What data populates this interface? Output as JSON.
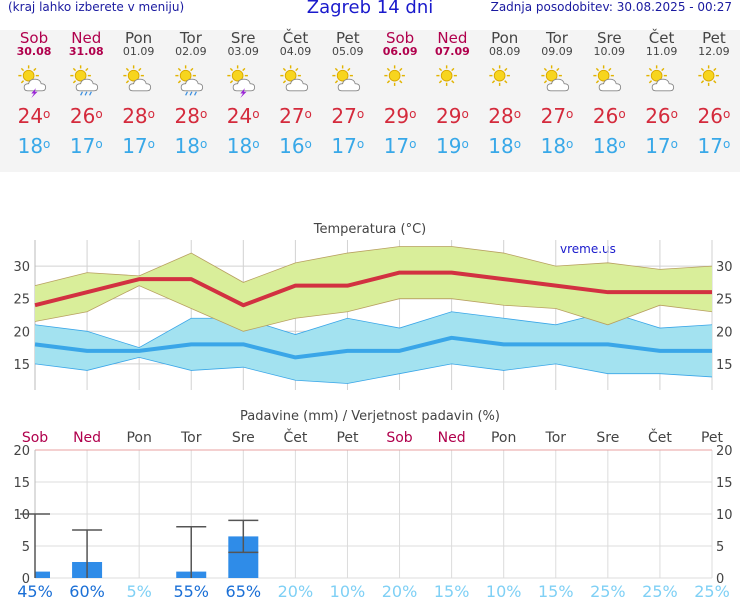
{
  "header": {
    "hint": "(kraj lahko izberete v meniju)",
    "title": "Zagreb 14 dni",
    "updated": "Zadnja posodobitev: 30.08.2025 - 00:27"
  },
  "days": [
    {
      "name": "Sob",
      "date": "30.08",
      "weekend": true,
      "icon": "sun-cloud-thunder-icon",
      "max": "24",
      "min": "18"
    },
    {
      "name": "Ned",
      "date": "31.08",
      "weekend": true,
      "icon": "sun-cloud-rain-icon",
      "max": "26",
      "min": "17"
    },
    {
      "name": "Pon",
      "date": "01.09",
      "weekend": false,
      "icon": "sun-cloud-icon",
      "max": "28",
      "min": "17"
    },
    {
      "name": "Tor",
      "date": "02.09",
      "weekend": false,
      "icon": "sun-cloud-rain-icon",
      "max": "28",
      "min": "18"
    },
    {
      "name": "Sre",
      "date": "03.09",
      "weekend": false,
      "icon": "sun-cloud-thunder-icon",
      "max": "24",
      "min": "18"
    },
    {
      "name": "Čet",
      "date": "04.09",
      "weekend": false,
      "icon": "sun-cloud-icon",
      "max": "27",
      "min": "16"
    },
    {
      "name": "Pet",
      "date": "05.09",
      "weekend": false,
      "icon": "sun-cloud-icon",
      "max": "27",
      "min": "17"
    },
    {
      "name": "Sob",
      "date": "06.09",
      "weekend": true,
      "icon": "sun-icon",
      "max": "29",
      "min": "17"
    },
    {
      "name": "Ned",
      "date": "07.09",
      "weekend": true,
      "icon": "sun-icon",
      "max": "29",
      "min": "19"
    },
    {
      "name": "Pon",
      "date": "08.09",
      "weekend": false,
      "icon": "sun-icon",
      "max": "28",
      "min": "18"
    },
    {
      "name": "Tor",
      "date": "09.09",
      "weekend": false,
      "icon": "sun-cloud-icon",
      "max": "27",
      "min": "18"
    },
    {
      "name": "Sre",
      "date": "10.09",
      "weekend": false,
      "icon": "sun-cloud-icon",
      "max": "26",
      "min": "18"
    },
    {
      "name": "Čet",
      "date": "11.09",
      "weekend": false,
      "icon": "sun-cloud-icon",
      "max": "26",
      "min": "17"
    },
    {
      "name": "Pet",
      "date": "12.09",
      "weekend": false,
      "icon": "sun-icon",
      "max": "26",
      "min": "17"
    }
  ],
  "chart_data": [
    {
      "type": "line",
      "title": "Temperatura (°C)",
      "watermark": "vreme.us",
      "ylim": [
        11,
        34
      ],
      "yticks": [
        15,
        20,
        25,
        30
      ],
      "grid": true,
      "categories": [
        "30.08",
        "31.08",
        "01.09",
        "02.09",
        "03.09",
        "04.09",
        "05.09",
        "06.09",
        "07.09",
        "08.09",
        "09.09",
        "10.09",
        "11.09",
        "12.09"
      ],
      "series": [
        {
          "name": "max",
          "color": "#d23141",
          "values": [
            24,
            26,
            28,
            28,
            24,
            27,
            27,
            29,
            29,
            28,
            27,
            26,
            26,
            26
          ]
        },
        {
          "name": "max range",
          "color": "#d9ee9a",
          "upper": [
            27,
            29,
            28.5,
            32,
            27.5,
            30.5,
            32,
            33,
            33,
            32,
            30,
            30.5,
            29.5,
            30
          ],
          "lower": [
            21.5,
            23,
            27,
            23.5,
            20,
            22,
            23,
            25,
            25,
            24,
            23.5,
            21,
            24,
            23
          ]
        },
        {
          "name": "min",
          "color": "#3aa6e8",
          "values": [
            18,
            17,
            17,
            18,
            18,
            16,
            17,
            17,
            19,
            18,
            18,
            18,
            17,
            17
          ]
        },
        {
          "name": "min range",
          "color": "#a3e2f0",
          "upper": [
            21,
            20,
            17.5,
            22,
            22,
            19.5,
            22,
            20.5,
            23,
            22,
            21,
            23,
            20.5,
            21
          ],
          "lower": [
            15,
            14,
            16,
            14,
            14.5,
            12.5,
            12,
            13.5,
            15,
            14,
            15,
            13.5,
            13.5,
            13
          ]
        }
      ]
    },
    {
      "type": "bar",
      "title": "Padavine (mm) / Verjetnost padavin (%)",
      "ylim": [
        0,
        20
      ],
      "yticks": [
        0,
        5,
        10,
        15,
        20
      ],
      "grid": true,
      "categories": [
        "Sob",
        "Ned",
        "Pon",
        "Tor",
        "Sre",
        "Čet",
        "Pet",
        "Sob",
        "Ned",
        "Pon",
        "Tor",
        "Sre",
        "Čet",
        "Pet"
      ],
      "weekend": [
        true,
        true,
        false,
        false,
        false,
        false,
        false,
        true,
        true,
        false,
        false,
        false,
        false,
        false
      ],
      "values": [
        1,
        2.5,
        0,
        1,
        6.5,
        0,
        0,
        0,
        0,
        0,
        0,
        0,
        0,
        0
      ],
      "error_high": [
        10,
        7.5,
        0,
        8,
        9,
        0,
        0,
        0,
        0,
        0,
        0,
        0,
        0,
        0
      ],
      "error_low": [
        0,
        0,
        0,
        0,
        4,
        0,
        0,
        0,
        0,
        0,
        0,
        0,
        0,
        0
      ],
      "probability": [
        "45%",
        "60%",
        "5%",
        "55%",
        "65%",
        "20%",
        "10%",
        "20%",
        "15%",
        "10%",
        "15%",
        "25%",
        "25%",
        "25%"
      ],
      "bar_color": "#2f8ce8"
    }
  ]
}
